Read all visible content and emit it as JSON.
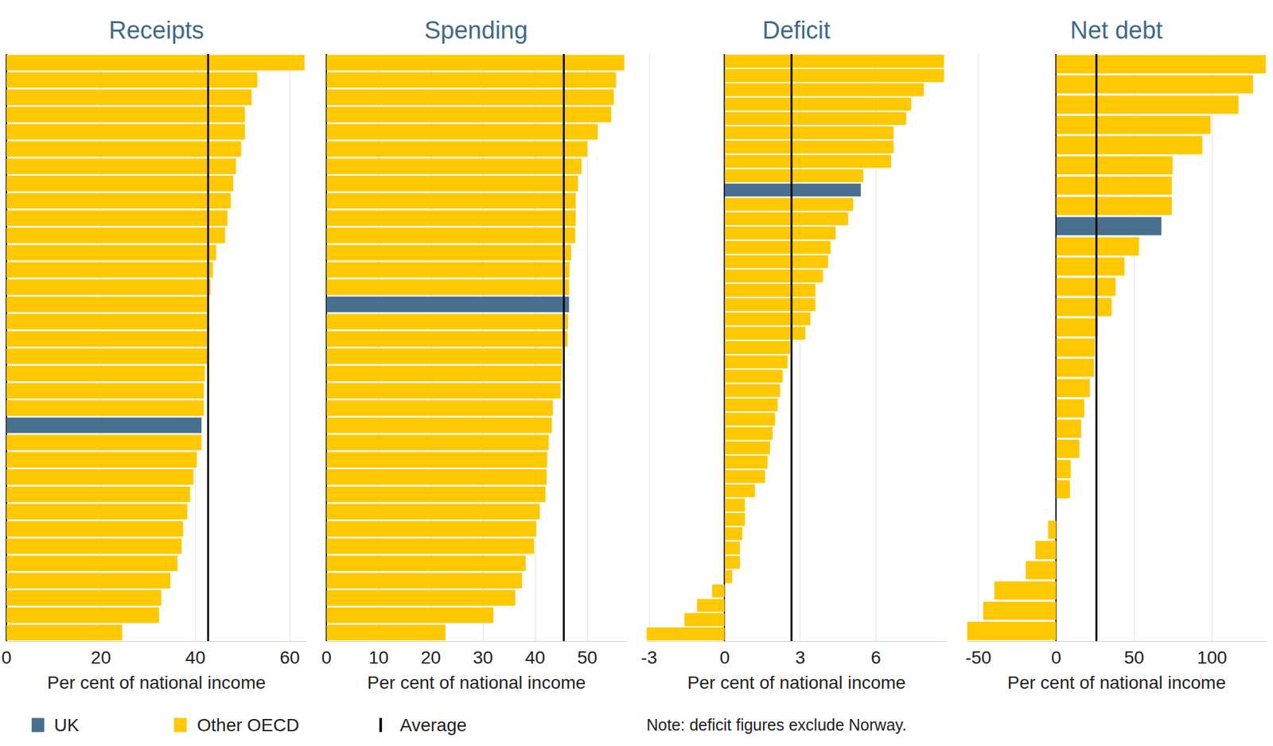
{
  "chart_data": [
    {
      "type": "bar",
      "title": "Receipts",
      "orientation": "horizontal",
      "xlabel": "Per cent of national income",
      "categories": [
        null,
        null,
        null,
        null,
        null,
        null,
        null,
        null,
        null,
        null,
        null,
        null,
        null,
        null,
        null,
        null,
        null,
        null,
        null,
        null,
        null,
        null,
        null,
        null,
        null,
        null,
        null,
        null,
        null,
        null,
        null,
        null,
        null,
        null
      ],
      "values": [
        63.1,
        53.1,
        51.9,
        50.5,
        50.5,
        49.7,
        48.6,
        48.0,
        47.5,
        46.8,
        46.3,
        44.4,
        43.7,
        43.2,
        42.9,
        42.9,
        42.7,
        42.7,
        42.0,
        41.8,
        41.8,
        41.3,
        41.3,
        40.3,
        39.6,
        38.9,
        38.3,
        37.4,
        37.1,
        36.2,
        34.7,
        32.8,
        32.3,
        24.5
      ],
      "colors": [
        "#ffc800",
        "#ffc800",
        "#ffc800",
        "#ffc800",
        "#ffc800",
        "#ffc800",
        "#ffc800",
        "#ffc800",
        "#ffc800",
        "#ffc800",
        "#ffc800",
        "#ffc800",
        "#ffc800",
        "#ffc800",
        "#ffc800",
        "#ffc800",
        "#ffc800",
        "#ffc800",
        "#ffc800",
        "#ffc800",
        "#ffc800",
        "#48708e",
        "#ffc800",
        "#ffc800",
        "#ffc800",
        "#ffc800",
        "#ffc800",
        "#ffc800",
        "#ffc800",
        "#ffc800",
        "#ffc800",
        "#ffc800",
        "#ffc800",
        "#ffc800"
      ],
      "average": 42.7,
      "xlim": [
        0,
        63.5
      ],
      "xticks": [
        0,
        20,
        40,
        60
      ],
      "grid": true,
      "tick_labels": "x"
    },
    {
      "type": "bar",
      "title": "Spending",
      "orientation": "horizontal",
      "xlabel": "Per cent of national income",
      "categories": [
        null,
        null,
        null,
        null,
        null,
        null,
        null,
        null,
        null,
        null,
        null,
        null,
        null,
        null,
        null,
        null,
        null,
        null,
        null,
        null,
        null,
        null,
        null,
        null,
        null,
        null,
        null,
        null,
        null,
        null,
        null,
        null,
        null,
        null
      ],
      "values": [
        57.1,
        55.5,
        55.1,
        54.6,
        52.0,
        50.0,
        48.9,
        48.2,
        47.8,
        47.8,
        47.7,
        46.9,
        46.6,
        46.5,
        46.5,
        46.3,
        46.2,
        45.2,
        45.1,
        44.9,
        43.4,
        43.2,
        42.6,
        42.3,
        42.2,
        42.0,
        40.9,
        40.2,
        39.8,
        38.2,
        37.5,
        36.2,
        32.0,
        22.8
      ],
      "colors": [
        "#ffc800",
        "#ffc800",
        "#ffc800",
        "#ffc800",
        "#ffc800",
        "#ffc800",
        "#ffc800",
        "#ffc800",
        "#ffc800",
        "#ffc800",
        "#ffc800",
        "#ffc800",
        "#ffc800",
        "#ffc800",
        "#48708e",
        "#ffc800",
        "#ffc800",
        "#ffc800",
        "#ffc800",
        "#ffc800",
        "#ffc800",
        "#ffc800",
        "#ffc800",
        "#ffc800",
        "#ffc800",
        "#ffc800",
        "#ffc800",
        "#ffc800",
        "#ffc800",
        "#ffc800",
        "#ffc800",
        "#ffc800",
        "#ffc800",
        "#ffc800"
      ],
      "average": 45.5,
      "xlim": [
        0,
        57.5
      ],
      "xticks": [
        0,
        10,
        20,
        30,
        40,
        50
      ],
      "grid": true,
      "tick_labels": "x"
    },
    {
      "type": "bar",
      "title": "Deficit",
      "orientation": "horizontal",
      "xlabel": "Per cent of national income",
      "categories": [
        null,
        null,
        null,
        null,
        null,
        null,
        null,
        null,
        null,
        null,
        null,
        null,
        null,
        null,
        null,
        null,
        null,
        null,
        null,
        null,
        null,
        null,
        null,
        null,
        null,
        null,
        null,
        null,
        null,
        null,
        null,
        null,
        null,
        null,
        null,
        null,
        null,
        null,
        null,
        null,
        null
      ],
      "values": [
        8.7,
        8.7,
        7.9,
        7.4,
        7.2,
        6.7,
        6.7,
        6.6,
        5.5,
        5.4,
        5.1,
        4.9,
        4.4,
        4.2,
        4.1,
        3.9,
        3.6,
        3.6,
        3.4,
        3.2,
        2.6,
        2.5,
        2.3,
        2.2,
        2.1,
        2.0,
        1.9,
        1.8,
        1.7,
        1.6,
        1.2,
        0.8,
        0.8,
        0.7,
        0.6,
        0.6,
        0.3,
        -0.5,
        -1.1,
        -1.6,
        -3.1
      ],
      "colors": [
        "#ffc800",
        "#ffc800",
        "#ffc800",
        "#ffc800",
        "#ffc800",
        "#ffc800",
        "#ffc800",
        "#ffc800",
        "#ffc800",
        "#48708e",
        "#ffc800",
        "#ffc800",
        "#ffc800",
        "#ffc800",
        "#ffc800",
        "#ffc800",
        "#ffc800",
        "#ffc800",
        "#ffc800",
        "#ffc800",
        "#ffc800",
        "#ffc800",
        "#ffc800",
        "#ffc800",
        "#ffc800",
        "#ffc800",
        "#ffc800",
        "#ffc800",
        "#ffc800",
        "#ffc800",
        "#ffc800",
        "#ffc800",
        "#ffc800",
        "#ffc800",
        "#ffc800",
        "#ffc800",
        "#ffc800",
        "#ffc800",
        "#ffc800",
        "#ffc800",
        "#ffc800"
      ],
      "average": 2.65,
      "xlim": [
        -3.1,
        8.8
      ],
      "xticks": [
        -3,
        0,
        3,
        6
      ],
      "grid": true,
      "tick_labels": "x"
    },
    {
      "type": "bar",
      "title": "Net debt",
      "orientation": "horizontal",
      "xlabel": "Per cent of national income",
      "categories": [
        null,
        null,
        null,
        null,
        null,
        null,
        null,
        null,
        null,
        null,
        null,
        null,
        null,
        null,
        null,
        null,
        null,
        null,
        null,
        null,
        null,
        null,
        null,
        null,
        null,
        null,
        null,
        null,
        null
      ],
      "values": [
        134.5,
        126.3,
        117.0,
        99.0,
        93.8,
        74.7,
        74.2,
        74.2,
        67.5,
        53.1,
        43.8,
        38.1,
        35.6,
        26.8,
        24.7,
        24.2,
        21.6,
        18.0,
        16.0,
        14.9,
        9.3,
        8.8,
        0,
        -5.2,
        -13.4,
        -19.6,
        -39.7,
        -46.9,
        -57.2
      ],
      "colors": [
        "#ffc800",
        "#ffc800",
        "#ffc800",
        "#ffc800",
        "#ffc800",
        "#ffc800",
        "#ffc800",
        "#ffc800",
        "#48708e",
        "#ffc800",
        "#ffc800",
        "#ffc800",
        "#ffc800",
        "#ffc800",
        "#ffc800",
        "#ffc800",
        "#ffc800",
        "#ffc800",
        "#ffc800",
        "#ffc800",
        "#ffc800",
        "#ffc800",
        "#ffc800",
        "#ffc800",
        "#ffc800",
        "#ffc800",
        "#ffc800",
        "#ffc800",
        "#ffc800"
      ],
      "average": 25.8,
      "xlim": [
        -57.5,
        135
      ],
      "xticks": [
        -50,
        0,
        50,
        100
      ],
      "grid": true,
      "tick_labels": "x"
    }
  ],
  "legend_entries": [
    {
      "name": "UK",
      "color": "#48708e",
      "marker": "square"
    },
    {
      "name": "Other OECD",
      "color": "#ffc800",
      "marker": "square"
    },
    {
      "name": "Average",
      "color": "#000000",
      "marker": "line"
    }
  ],
  "note": "Note: deficit figures exclude Norway."
}
